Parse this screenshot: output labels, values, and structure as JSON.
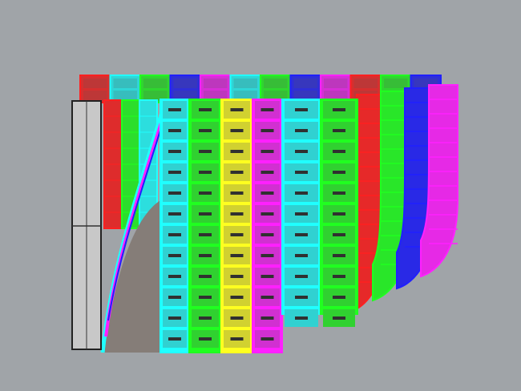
{
  "viewport": {
    "background": "#a0a4a8",
    "back_row_colors": [
      "#ff2020",
      "#20ffff",
      "#20ff20",
      "#2020ff",
      "#ff20ff",
      "#20ffff",
      "#20ff20",
      "#2020ff",
      "#ff20ff",
      "#ff2020",
      "#20ff20",
      "#2020ff"
    ],
    "front_strip_colors": [
      "#20ffff",
      "#20ff20",
      "#ffff20",
      "#ff20ff",
      "#20ffff",
      "#20ff20"
    ],
    "curved_strip_colors": [
      "#ff2020",
      "#20ff20",
      "#2020ff",
      "#ff20ff"
    ],
    "left_strip_colors": [
      "#ff2020",
      "#20ff20",
      "#20ffff"
    ],
    "frame_color": "#c8c8c8",
    "shadow_color": "#857d78"
  }
}
